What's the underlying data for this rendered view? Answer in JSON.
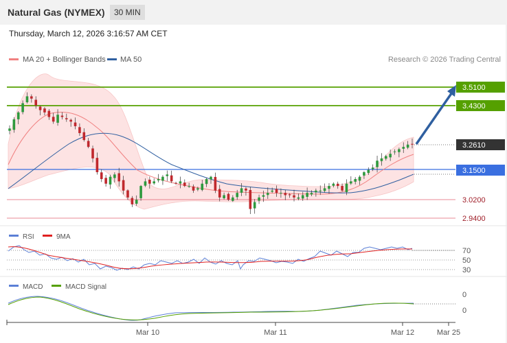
{
  "header": {
    "title": "Natural Gas (NYMEX)",
    "timeframe": "30 MIN"
  },
  "datetime": "Thursday, March 12, 2026 3:16:57 AM CET",
  "legend": {
    "ma20": "MA 20 + Bollinger Bands",
    "ma50": "MA 50",
    "copyright": "Research © 2026 Trading Central"
  },
  "levels": {
    "r2": "3.5100",
    "r1": "3.4300",
    "last": "3.2610",
    "pivot": "3.1500",
    "s1": "3.0200",
    "s2": "2.9400"
  },
  "rsi_panel": {
    "label1": "RSI",
    "label2": "9MA",
    "ticks": [
      "70",
      "50",
      "30"
    ]
  },
  "macd_panel": {
    "label1": "MACD",
    "label2": "MACD Signal",
    "ticks": [
      "0",
      "0"
    ]
  },
  "xaxis": {
    "ticks": [
      "Mar 10",
      "Mar 11",
      "Mar 12",
      "Mar 25"
    ]
  },
  "colors": {
    "resistance": "#55a000",
    "pivot": "#3a6fe0",
    "support": "#e06070",
    "last": "#333333",
    "ma20": "#f08080",
    "ma50": "#2f5fa0",
    "bull": "#2e9a3e",
    "bear": "#c0282d",
    "rsi": "#5b7fd6",
    "rsi_ma": "#e02020",
    "macd": "#5b7fd6",
    "macd_signal": "#55a000",
    "arrow": "#2f5fa0"
  },
  "chart_data": {
    "type": "candlestick",
    "instrument": "Natural Gas (NYMEX)",
    "interval": "30 MIN",
    "x": [
      "Mar 10",
      "Mar 11",
      "Mar 12",
      "Mar 25"
    ],
    "ylim": [
      2.9,
      3.56
    ],
    "close_path": [
      3.33,
      3.37,
      3.4,
      3.44,
      3.47,
      3.46,
      3.43,
      3.41,
      3.4,
      3.38,
      3.36,
      3.39,
      3.38,
      3.37,
      3.36,
      3.34,
      3.31,
      3.28,
      3.25,
      3.2,
      3.14,
      3.11,
      3.09,
      3.12,
      3.13,
      3.1,
      3.06,
      3.03,
      3.0,
      3.02,
      3.08,
      3.1,
      3.09,
      3.1,
      3.11,
      3.12,
      3.13,
      3.1,
      3.09,
      3.1,
      3.08,
      3.08,
      3.06,
      3.07,
      3.09,
      3.11,
      3.12,
      3.06,
      3.03,
      3.04,
      3.02,
      3.03,
      3.05,
      3.07,
      3.06,
      2.98,
      3.01,
      3.03,
      3.04,
      3.05,
      3.06,
      3.05,
      3.05,
      3.04,
      3.04,
      3.03,
      3.03,
      3.04,
      3.05,
      3.05,
      3.06,
      3.06,
      3.07,
      3.08,
      3.09,
      3.08,
      3.06,
      3.09,
      3.1,
      3.11,
      3.12,
      3.14,
      3.15,
      3.16,
      3.19,
      3.2,
      3.21,
      3.22,
      3.23,
      3.24,
      3.25,
      3.26,
      3.26
    ],
    "levels": [
      3.51,
      3.43,
      3.261,
      3.15,
      3.02,
      2.94
    ],
    "projection": {
      "from": 3.261,
      "to": 3.51
    },
    "indicators": [
      "MA 20 + Bollinger Bands",
      "MA 50",
      "RSI",
      "9MA",
      "MACD",
      "MACD Signal"
    ],
    "rsi_levels": [
      70,
      50,
      30
    ]
  }
}
